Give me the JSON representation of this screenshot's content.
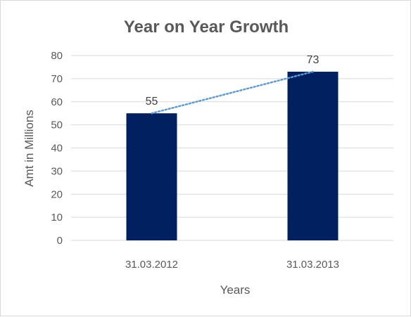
{
  "chart_data": {
    "type": "bar",
    "title": "Year on Year Growth",
    "xlabel": "Years",
    "ylabel": "Amt in Millions",
    "categories": [
      "31.03.2012",
      "31.03.2013"
    ],
    "values": [
      55,
      73
    ],
    "data_labels": [
      "55",
      "73"
    ],
    "ylim": [
      0,
      80
    ],
    "yticks": [
      0,
      10,
      20,
      30,
      40,
      50,
      60,
      70,
      80
    ],
    "grid": true,
    "legend": "none",
    "bar_color": "#002060",
    "trendline": {
      "type": "linear",
      "style": "dotted",
      "color": "#5b9bd5"
    }
  }
}
